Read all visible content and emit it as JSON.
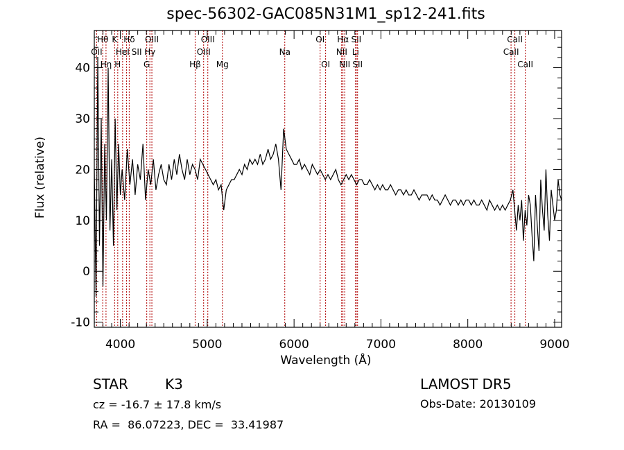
{
  "chart_data": {
    "type": "line",
    "title": "spec-56302-GAC085N31M1_sp12-241.fits",
    "xlabel": "Wavelength (Å)",
    "ylabel": "Flux (relative)",
    "xlim": [
      3700,
      9080
    ],
    "ylim": [
      -11,
      47.3
    ],
    "xticks": [
      4000,
      5000,
      6000,
      7000,
      8000,
      9000
    ],
    "yticks": [
      -10,
      0,
      10,
      20,
      30,
      40
    ],
    "grid": false,
    "series": [
      {
        "name": "flux",
        "segments": [
          {
            "start": 3700,
            "step": 20,
            "flux": [
              20,
              -5,
              42,
              5,
              30,
              -3,
              25,
              10,
              40,
              8,
              22,
              5,
              30,
              12,
              25,
              15
            ]
          },
          {
            "start": 4020,
            "step": 30,
            "flux": [
              20,
              14,
              24,
              17,
              22,
              15,
              21,
              18,
              25,
              14,
              20,
              17,
              22,
              16,
              19,
              21,
              18
            ]
          },
          {
            "start": 4530,
            "step": 30,
            "flux": [
              17,
              21,
              18,
              22,
              19,
              23,
              20,
              18,
              22,
              19,
              21,
              20,
              18,
              22,
              21,
              20
            ]
          },
          {
            "start": 5010,
            "step": 30,
            "flux": [
              19,
              18,
              17,
              18,
              16,
              17,
              12,
              16,
              17,
              18,
              18,
              19,
              20,
              19,
              21,
              20,
              22,
              21,
              22,
              21
            ]
          },
          {
            "start": 5610,
            "step": 30,
            "flux": [
              23,
              21,
              22,
              24,
              22,
              23,
              25,
              22,
              16,
              28,
              24,
              23,
              22,
              21
            ]
          },
          {
            "start": 6030,
            "step": 30,
            "flux": [
              21,
              22,
              20,
              21,
              20,
              19,
              21,
              20,
              19,
              20,
              19,
              18,
              19,
              18,
              19,
              20,
              18,
              17,
              18,
              19
            ]
          },
          {
            "start": 6630,
            "step": 30,
            "flux": [
              18,
              19,
              18,
              17,
              18,
              18,
              17,
              17,
              18,
              17,
              16,
              17,
              16,
              17,
              16,
              16,
              17,
              16,
              15,
              16,
              16,
              15,
              16,
              15,
              15,
              16,
              15,
              14,
              15,
              15
            ]
          },
          {
            "start": 7530,
            "step": 30,
            "flux": [
              15,
              14,
              15,
              14,
              14,
              13,
              14,
              15,
              14,
              13,
              14,
              14,
              13,
              14,
              13,
              14,
              14,
              13,
              14,
              13,
              13,
              14,
              13,
              12,
              14,
              13,
              12,
              13,
              12,
              13,
              12,
              13,
              14
            ]
          },
          {
            "start": 8520,
            "step": 20,
            "flux": [
              16,
              12,
              8,
              13,
              10,
              14,
              6,
              12,
              9,
              15,
              13,
              7,
              2,
              15,
              9,
              4,
              18,
              12,
              8,
              20,
              11,
              6,
              16,
              13,
              10,
              12,
              18,
              15,
              14
            ]
          }
        ]
      }
    ],
    "annotations": [
      {
        "wavelength": 3727,
        "label": "OII",
        "row": 2
      },
      {
        "wavelength": 3797,
        "label": "Hθ",
        "row": 1
      },
      {
        "wavelength": 3835,
        "label": "Hη",
        "row": 3
      },
      {
        "wavelength": 3934,
        "label": "K",
        "row": 1
      },
      {
        "wavelength": 3970,
        "label": "H",
        "row": 3
      },
      {
        "wavelength": 4026,
        "label": "HeI",
        "row": 2
      },
      {
        "wavelength": 4072,
        "label": "SII",
        "row": 2
      },
      {
        "wavelength": 4102,
        "label": "Hδ",
        "row": 1
      },
      {
        "wavelength": 4304,
        "label": "G",
        "row": 3
      },
      {
        "wavelength": 4340,
        "label": "Hγ",
        "row": 2
      },
      {
        "wavelength": 4363,
        "label": "OIII",
        "row": 1
      },
      {
        "wavelength": 4861,
        "label": "Hβ",
        "row": 3
      },
      {
        "wavelength": 4959,
        "label": "OIII",
        "row": 2
      },
      {
        "wavelength": 5007,
        "label": "OIII",
        "row": 1
      },
      {
        "wavelength": 5175,
        "label": "Mg",
        "row": 3
      },
      {
        "wavelength": 5893,
        "label": "Na",
        "row": 2
      },
      {
        "wavelength": 6300,
        "label": "OI",
        "row": 1
      },
      {
        "wavelength": 6363,
        "label": "OI",
        "row": 3
      },
      {
        "wavelength": 6548,
        "label": "NII",
        "row": 2
      },
      {
        "wavelength": 6563,
        "label": "Hα",
        "row": 1
      },
      {
        "wavelength": 6583,
        "label": "NII",
        "row": 3
      },
      {
        "wavelength": 6708,
        "label": "Li",
        "row": 2
      },
      {
        "wavelength": 6716,
        "label": "SII",
        "row": 1
      },
      {
        "wavelength": 6731,
        "label": "SII",
        "row": 3
      },
      {
        "wavelength": 8498,
        "label": "CaII",
        "row": 2
      },
      {
        "wavelength": 8542,
        "label": "CaII",
        "row": 1
      },
      {
        "wavelength": 8662,
        "label": "CaII",
        "row": 3
      }
    ],
    "line_color": "#b00000"
  },
  "info": {
    "class": "STAR",
    "subclass": "K3",
    "cz": "cz = -16.7 ± 17.8 km/s",
    "coords": "RA =  86.07223, DEC =  33.41987",
    "survey": "LAMOST DR5",
    "obs_date": "Obs-Date: 20130109"
  }
}
